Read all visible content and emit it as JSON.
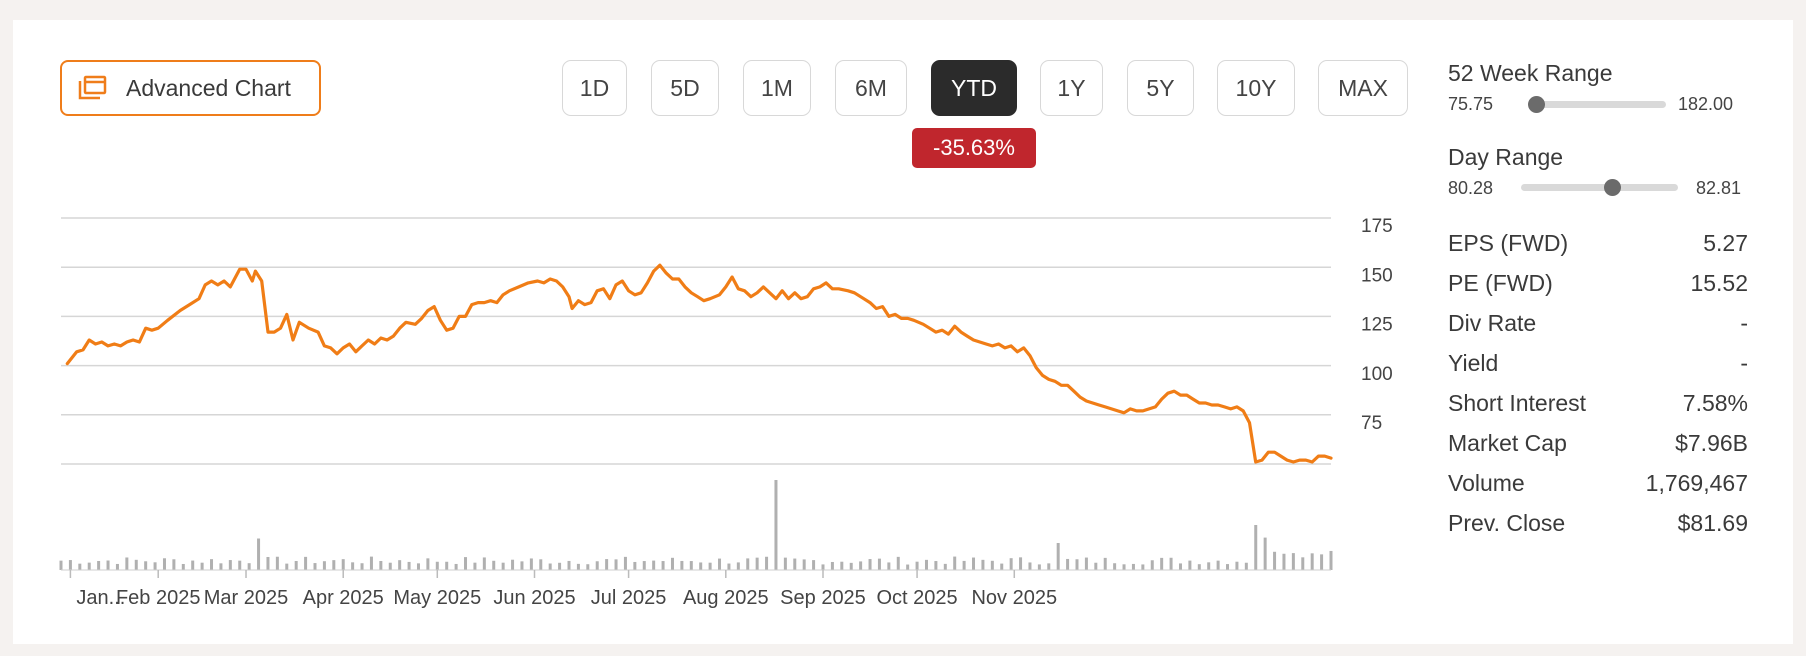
{
  "toolbar": {
    "advanced_chart_label": "Advanced Chart",
    "periods": [
      "1D",
      "5D",
      "1M",
      "6M",
      "YTD",
      "1Y",
      "5Y",
      "10Y",
      "MAX"
    ],
    "active_period": "YTD",
    "change_badge": "-35.63%"
  },
  "colors": {
    "line": "#f07d16",
    "badge": "#c0262d",
    "accent": "#ef7d1a",
    "volume": "#b0b0b0"
  },
  "stats": {
    "week52": {
      "title": "52 Week Range",
      "low": "75.75",
      "high": "182.00",
      "position": 0.05
    },
    "day": {
      "title": "Day Range",
      "low": "80.28",
      "high": "82.81",
      "position": 0.58
    },
    "rows": [
      {
        "key": "EPS (FWD)",
        "value": "5.27"
      },
      {
        "key": "PE (FWD)",
        "value": "15.52"
      },
      {
        "key": "Div Rate",
        "value": "-"
      },
      {
        "key": "Yield",
        "value": "-"
      },
      {
        "key": "Short Interest",
        "value": "7.58%"
      },
      {
        "key": "Market Cap",
        "value": "$7.96B"
      },
      {
        "key": "Volume",
        "value": "1,769,467"
      },
      {
        "key": "Prev. Close",
        "value": "$81.69"
      }
    ]
  },
  "chart_data": {
    "type": "line",
    "title": "",
    "xlabel": "",
    "ylabel": "",
    "x_tick_labels": [
      "Jan...",
      "Feb 2025",
      "Mar 2025",
      "Apr 2025",
      "May 2025",
      "Jun 2025",
      "Jul 2025",
      "Aug 2025",
      "Sep 2025",
      "Oct 2025",
      "Nov 2025"
    ],
    "x_tick_days": [
      3,
      31,
      59,
      90,
      120,
      151,
      181,
      212,
      243,
      273,
      304
    ],
    "y_ticks": [
      75,
      100,
      125,
      150,
      175
    ],
    "ylim": [
      75,
      200
    ],
    "grid": true,
    "series": [
      {
        "values_by_day": [
          [
            2,
            126
          ],
          [
            5,
            132
          ],
          [
            7,
            133
          ],
          [
            9,
            138
          ],
          [
            11,
            136
          ],
          [
            13,
            137
          ],
          [
            15,
            135
          ],
          [
            17,
            136
          ],
          [
            19,
            135
          ],
          [
            21,
            137
          ],
          [
            23,
            138
          ],
          [
            25,
            137
          ],
          [
            27,
            144
          ],
          [
            29,
            143
          ],
          [
            31,
            144
          ],
          [
            34,
            148
          ],
          [
            38,
            153
          ],
          [
            41,
            156
          ],
          [
            44,
            159
          ],
          [
            46,
            166
          ],
          [
            48,
            168
          ],
          [
            50,
            166
          ],
          [
            52,
            168
          ],
          [
            54,
            165
          ],
          [
            57,
            174
          ],
          [
            59,
            174
          ],
          [
            61,
            168
          ],
          [
            62,
            173
          ],
          [
            64,
            168
          ],
          [
            66,
            142
          ],
          [
            68,
            142
          ],
          [
            70,
            144
          ],
          [
            72,
            151
          ],
          [
            74,
            138
          ],
          [
            76,
            147
          ],
          [
            79,
            144
          ],
          [
            82,
            142
          ],
          [
            84,
            135
          ],
          [
            86,
            134
          ],
          [
            88,
            131
          ],
          [
            90,
            134
          ],
          [
            92,
            136
          ],
          [
            94,
            132
          ],
          [
            96,
            135
          ],
          [
            98,
            138
          ],
          [
            100,
            136
          ],
          [
            102,
            139
          ],
          [
            104,
            138
          ],
          [
            106,
            140
          ],
          [
            108,
            144
          ],
          [
            110,
            147
          ],
          [
            113,
            146
          ],
          [
            115,
            149
          ],
          [
            117,
            153
          ],
          [
            119,
            155
          ],
          [
            121,
            148
          ],
          [
            123,
            143
          ],
          [
            125,
            144
          ],
          [
            127,
            150
          ],
          [
            129,
            150
          ],
          [
            131,
            156
          ],
          [
            133,
            157
          ],
          [
            135,
            157
          ],
          [
            137,
            158
          ],
          [
            139,
            157
          ],
          [
            141,
            161
          ],
          [
            143,
            163
          ],
          [
            146,
            165
          ],
          [
            149,
            167
          ],
          [
            152,
            168
          ],
          [
            154,
            167
          ],
          [
            156,
            169
          ],
          [
            158,
            168
          ],
          [
            160,
            165
          ],
          [
            162,
            160
          ],
          [
            163,
            154
          ],
          [
            165,
            158
          ],
          [
            167,
            156
          ],
          [
            169,
            157
          ],
          [
            171,
            163
          ],
          [
            173,
            164
          ],
          [
            175,
            159
          ],
          [
            177,
            166
          ],
          [
            179,
            168
          ],
          [
            181,
            163
          ],
          [
            183,
            161
          ],
          [
            185,
            162
          ],
          [
            187,
            167
          ],
          [
            189,
            173
          ],
          [
            191,
            176
          ],
          [
            193,
            172
          ],
          [
            195,
            169
          ],
          [
            197,
            169
          ],
          [
            199,
            165
          ],
          [
            201,
            162
          ],
          [
            203,
            160
          ],
          [
            205,
            158
          ],
          [
            207,
            159
          ],
          [
            210,
            161
          ],
          [
            212,
            165
          ],
          [
            214,
            170
          ],
          [
            216,
            164
          ],
          [
            218,
            163
          ],
          [
            220,
            160
          ],
          [
            222,
            162
          ],
          [
            224,
            165
          ],
          [
            226,
            162
          ],
          [
            228,
            159
          ],
          [
            230,
            163
          ],
          [
            232,
            159
          ],
          [
            234,
            162
          ],
          [
            236,
            159
          ],
          [
            238,
            160
          ],
          [
            240,
            164
          ],
          [
            242,
            165
          ],
          [
            244,
            167
          ],
          [
            246,
            164
          ],
          [
            248,
            164
          ],
          [
            251,
            163
          ],
          [
            253,
            162
          ],
          [
            256,
            159
          ],
          [
            258,
            157
          ],
          [
            260,
            154
          ],
          [
            262,
            155
          ],
          [
            264,
            150
          ],
          [
            266,
            151
          ],
          [
            268,
            149
          ],
          [
            270,
            149
          ],
          [
            272,
            148
          ],
          [
            275,
            146
          ],
          [
            277,
            144
          ],
          [
            279,
            142
          ],
          [
            281,
            143
          ],
          [
            283,
            141
          ],
          [
            285,
            145
          ],
          [
            287,
            142
          ],
          [
            289,
            140
          ],
          [
            291,
            138
          ],
          [
            293,
            137
          ],
          [
            295,
            136
          ],
          [
            297,
            135
          ],
          [
            299,
            136
          ],
          [
            301,
            134
          ],
          [
            303,
            135
          ],
          [
            305,
            132
          ],
          [
            307,
            134
          ],
          [
            309,
            130
          ],
          [
            311,
            124
          ],
          [
            313,
            120
          ],
          [
            315,
            118
          ],
          [
            317,
            117
          ],
          [
            319,
            115
          ],
          [
            321,
            115
          ],
          [
            323,
            112
          ],
          [
            325,
            109
          ],
          [
            327,
            107
          ],
          [
            329,
            106
          ],
          [
            331,
            105
          ],
          [
            333,
            104
          ],
          [
            335,
            103
          ],
          [
            337,
            102
          ],
          [
            339,
            101
          ],
          [
            341,
            103
          ],
          [
            343,
            102
          ],
          [
            345,
            102
          ],
          [
            347,
            103
          ],
          [
            349,
            104
          ],
          [
            351,
            108
          ],
          [
            353,
            111
          ],
          [
            355,
            112
          ],
          [
            357,
            110
          ],
          [
            359,
            110
          ],
          [
            361,
            108
          ],
          [
            363,
            106
          ],
          [
            365,
            106
          ],
          [
            367,
            105
          ],
          [
            369,
            105
          ],
          [
            371,
            104
          ],
          [
            373,
            103
          ],
          [
            375,
            104
          ],
          [
            377,
            102
          ],
          [
            379,
            96
          ],
          [
            381,
            76
          ],
          [
            383,
            77
          ],
          [
            385,
            81
          ],
          [
            387,
            81
          ],
          [
            389,
            79
          ],
          [
            391,
            77
          ],
          [
            393,
            76
          ],
          [
            395,
            77
          ],
          [
            397,
            77
          ],
          [
            399,
            76
          ],
          [
            401,
            79
          ],
          [
            403,
            79
          ],
          [
            405,
            78
          ]
        ]
      }
    ],
    "volume": {
      "baseline_ticks": true,
      "spikes": [
        {
          "day": 63,
          "level": 0.35
        },
        {
          "day": 229,
          "level": 1.0
        },
        {
          "day": 318,
          "level": 0.3
        },
        {
          "day": 380,
          "level": 0.72
        },
        {
          "day": 382,
          "level": 0.5
        },
        {
          "day": 384,
          "level": 0.36
        }
      ],
      "typical_level": 0.1
    }
  }
}
